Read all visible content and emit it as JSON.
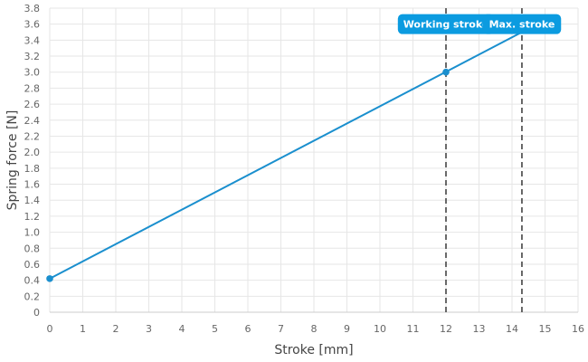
{
  "chart_data": {
    "type": "line",
    "xlabel": "Stroke [mm]",
    "ylabel": "Spring force [N]",
    "xlim": [
      0,
      16
    ],
    "ylim": [
      0,
      3.8
    ],
    "x_ticks": [
      "0",
      "1",
      "2",
      "3",
      "4",
      "5",
      "6",
      "7",
      "8",
      "9",
      "10",
      "11",
      "12",
      "13",
      "14",
      "15",
      "16"
    ],
    "y_ticks": [
      "0",
      "0.2",
      "0.4",
      "0.6",
      "0.8",
      "1.0",
      "1.2",
      "1.4",
      "1.6",
      "1.8",
      "2.0",
      "2.2",
      "2.4",
      "2.6",
      "2.8",
      "3.0",
      "3.2",
      "3.4",
      "3.6",
      "3.8"
    ],
    "grid": true,
    "colors": {
      "line": "#1a8fce",
      "marker": "#1a8fce",
      "callout_bg": "#0b9be0",
      "reference_line": "#444444",
      "grid": "#e6e6e6"
    },
    "series": [
      {
        "x": [
          0,
          14.3
        ],
        "y": [
          0.42,
          3.5
        ]
      }
    ],
    "markers": [
      {
        "x": 0,
        "y": 0.42
      },
      {
        "x": 12,
        "y": 3.0
      }
    ],
    "reference_lines": [
      {
        "x": 12,
        "label": "Working stroke"
      },
      {
        "x": 14.3,
        "label": "Max. stroke"
      }
    ]
  }
}
